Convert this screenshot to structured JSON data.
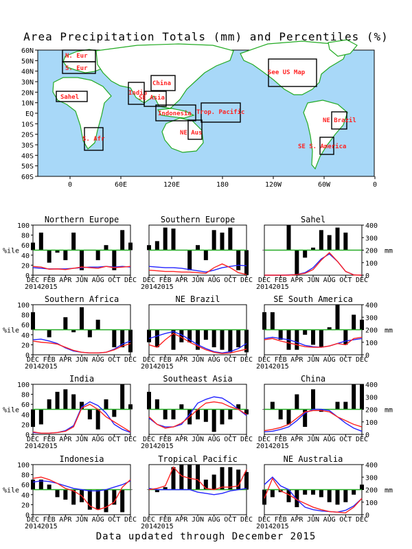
{
  "title": "Area Precipitation Totals (mm) and Percentiles (%)",
  "footer": "Data updated through December 2015",
  "colors": {
    "ocean": "#a8d8f8",
    "land": "#ffffff",
    "coast": "#22aa22",
    "bar": "#000000",
    "line_2015": "#ff2222",
    "line_normal": "#2222ff",
    "percentile_50": "#22aa22",
    "region_label": "#ff2222"
  },
  "map": {
    "lat_labels": [
      "60N",
      "50N",
      "40N",
      "30N",
      "20N",
      "10N",
      "EQ",
      "10S",
      "20S",
      "30S",
      "40S",
      "50S",
      "60S"
    ],
    "lon_labels": [
      "0",
      "60E",
      "120E",
      "180",
      "120W",
      "60W",
      "0"
    ],
    "regions": [
      {
        "label": "N. Eur"
      },
      {
        "label": "S. Eur"
      },
      {
        "label": "Sahel"
      },
      {
        "label": "S. Afr"
      },
      {
        "label": "India"
      },
      {
        "label": "China"
      },
      {
        "label": "SE Asia"
      },
      {
        "label": "Indonesia"
      },
      {
        "label": "Trop. Pacific"
      },
      {
        "label": "NE Aus"
      },
      {
        "label": "See US Map"
      },
      {
        "label": "NE Brazil"
      },
      {
        "label": "SE S. America"
      }
    ]
  },
  "axis_labels": {
    "left_unit": "%ile",
    "right_unit": "mm",
    "left_ticks": [
      "0",
      "20",
      "40",
      "60",
      "80",
      "100"
    ],
    "right_ticks": [
      "0",
      "100",
      "200",
      "300",
      "400"
    ],
    "x_ticks": [
      "DEC",
      "FEB",
      "APR",
      "JUN",
      "AUG",
      "OCT",
      "DEC"
    ],
    "year_label": "2015",
    "year_label_left": "2014"
  },
  "chart_data": {
    "type": "bar+line",
    "x": [
      "DEC",
      "JAN",
      "FEB",
      "MAR",
      "APR",
      "MAY",
      "JUN",
      "JUL",
      "AUG",
      "SEP",
      "OCT",
      "NOV",
      "DEC"
    ],
    "left_axis": {
      "label": "%ile",
      "range": [
        0,
        100
      ]
    },
    "right_axis": {
      "label": "mm",
      "range": [
        0,
        400
      ]
    },
    "reference_line_percentile": 50,
    "panels": [
      {
        "title": "Northern Europe",
        "percentile": [
          65,
          85,
          25,
          45,
          30,
          85,
          10,
          50,
          30,
          60,
          10,
          90,
          65
        ],
        "precip_2015": [
          70,
          65,
          48,
          50,
          45,
          55,
          65,
          60,
          55,
          70,
          60,
          65,
          70
        ],
        "precip_normal": [
          60,
          55,
          50,
          50,
          50,
          55,
          60,
          65,
          65,
          70,
          65,
          70,
          65
        ]
      },
      {
        "title": "Southern Europe",
        "percentile": [
          60,
          68,
          95,
          93,
          50,
          10,
          60,
          30,
          90,
          85,
          95,
          10,
          0
        ],
        "precip_2015": [
          40,
          35,
          30,
          30,
          25,
          25,
          20,
          15,
          60,
          90,
          60,
          20,
          5
        ],
        "precip_normal": [
          70,
          65,
          60,
          60,
          55,
          45,
          35,
          25,
          40,
          60,
          70,
          80,
          75
        ]
      },
      {
        "title": "Sahel",
        "percentile": [
          50,
          50,
          50,
          100,
          0,
          35,
          55,
          90,
          80,
          95,
          85,
          50,
          50
        ],
        "precip_2015": [
          0,
          0,
          0,
          0,
          5,
          15,
          45,
          120,
          180,
          110,
          30,
          2,
          0
        ],
        "precip_normal": [
          0,
          0,
          0,
          2,
          5,
          20,
          60,
          130,
          170,
          110,
          30,
          3,
          0
        ]
      },
      {
        "title": "Southern Africa",
        "percentile": [
          85,
          50,
          35,
          50,
          75,
          45,
          95,
          35,
          70,
          50,
          15,
          15,
          5
        ],
        "precip_2015": [
          110,
          100,
          95,
          85,
          60,
          35,
          20,
          15,
          15,
          20,
          40,
          70,
          90
        ],
        "precip_normal": [
          120,
          125,
          110,
          90,
          55,
          30,
          20,
          15,
          15,
          20,
          45,
          85,
          110
        ]
      },
      {
        "title": "NE Brazil",
        "percentile": [
          25,
          15,
          50,
          10,
          25,
          25,
          10,
          30,
          15,
          10,
          5,
          15,
          5
        ],
        "precip_2015": [
          80,
          60,
          120,
          170,
          140,
          100,
          70,
          40,
          20,
          10,
          15,
          30,
          45
        ],
        "precip_normal": [
          130,
          150,
          170,
          185,
          160,
          120,
          80,
          50,
          25,
          15,
          25,
          50,
          90
        ]
      },
      {
        "title": "SE South America",
        "percentile": [
          85,
          85,
          30,
          10,
          10,
          40,
          20,
          15,
          55,
          100,
          20,
          80,
          70
        ],
        "precip_2015": [
          120,
          130,
          110,
          95,
          80,
          65,
          60,
          60,
          70,
          90,
          80,
          130,
          140
        ],
        "precip_normal": [
          130,
          140,
          130,
          120,
          100,
          75,
          65,
          60,
          70,
          90,
          110,
          120,
          130
        ]
      },
      {
        "title": "India",
        "percentile": [
          15,
          20,
          70,
          85,
          90,
          80,
          65,
          30,
          10,
          70,
          35,
          100,
          60
        ],
        "precip_2015": [
          20,
          10,
          10,
          15,
          25,
          60,
          210,
          240,
          200,
          140,
          100,
          60,
          20
        ],
        "precip_normal": [
          15,
          10,
          10,
          15,
          30,
          70,
          220,
          260,
          230,
          170,
          80,
          40,
          15
        ]
      },
      {
        "title": "Southeast Asia",
        "percentile": [
          85,
          70,
          30,
          30,
          60,
          20,
          30,
          25,
          5,
          20,
          30,
          60,
          40
        ],
        "precip_2015": [
          140,
          80,
          50,
          60,
          90,
          140,
          200,
          250,
          260,
          250,
          220,
          200,
          160
        ],
        "precip_normal": [
          130,
          80,
          60,
          60,
          80,
          160,
          250,
          280,
          300,
          290,
          250,
          200,
          150
        ]
      },
      {
        "title": "China",
        "percentile": [
          50,
          65,
          30,
          20,
          80,
          15,
          90,
          45,
          50,
          65,
          65,
          100,
          100
        ],
        "precip_2015": [
          30,
          40,
          55,
          80,
          130,
          180,
          190,
          190,
          180,
          140,
          110,
          80,
          60
        ],
        "precip_normal": [
          20,
          25,
          40,
          60,
          110,
          170,
          200,
          200,
          190,
          140,
          90,
          50,
          25
        ]
      },
      {
        "title": "Indonesia",
        "percentile": [
          70,
          70,
          60,
          35,
          30,
          20,
          25,
          10,
          10,
          5,
          20,
          5,
          50
        ],
        "precip_2015": [
          290,
          300,
          280,
          250,
          210,
          190,
          150,
          70,
          40,
          60,
          100,
          220,
          280
        ],
        "precip_normal": [
          260,
          270,
          265,
          250,
          230,
          210,
          200,
          190,
          190,
          200,
          220,
          240,
          270
        ]
      },
      {
        "title": "Tropical Pacific",
        "percentile": [
          50,
          45,
          55,
          95,
          100,
          100,
          100,
          70,
          80,
          95,
          95,
          90,
          85
        ],
        "precip_2015": [
          200,
          210,
          230,
          380,
          310,
          290,
          280,
          210,
          200,
          220,
          220,
          230,
          360
        ],
        "precip_normal": [
          210,
          200,
          200,
          200,
          200,
          200,
          180,
          170,
          160,
          170,
          190,
          200,
          210
        ]
      },
      {
        "title": "NE Australia",
        "percentile": [
          20,
          35,
          45,
          25,
          15,
          40,
          40,
          35,
          25,
          20,
          25,
          40,
          60
        ],
        "precip_2015": [
          130,
          290,
          190,
          160,
          120,
          90,
          60,
          40,
          25,
          20,
          15,
          60,
          130
        ],
        "precip_normal": [
          240,
          300,
          230,
          200,
          120,
          60,
          40,
          30,
          25,
          20,
          35,
          70,
          130
        ]
      }
    ]
  }
}
